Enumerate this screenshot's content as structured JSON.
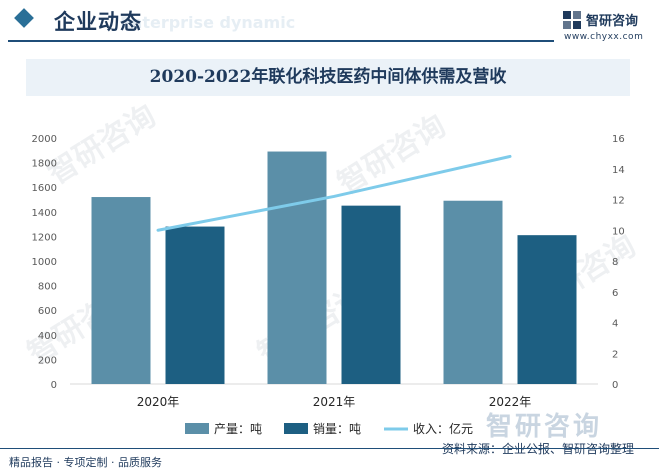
{
  "header": {
    "title": "企业动态",
    "subtitle": "Enterprise dynamic",
    "brand_name": "智研咨询",
    "brand_url": "www.chyxx.com"
  },
  "footer": {
    "services": "精品报告 · 专项定制 · 品质服务",
    "source": "资料来源：企业公报、智研咨询整理"
  },
  "watermark_text": "智研咨询",
  "colors": {
    "production": "#5b8fa8",
    "sales": "#1d5f82",
    "revenue": "#7ecbea",
    "title_band": "#ebf2f8",
    "brand_dark": "#1f3a5c"
  },
  "chart_data": {
    "type": "bar",
    "title": "2020-2022年联化科技医药中间体供需及营收",
    "categories": [
      "2020年",
      "2021年",
      "2022年"
    ],
    "series": [
      {
        "name": "产量：吨",
        "type": "bar",
        "axis": "left",
        "values": [
          1520,
          1890,
          1490
        ]
      },
      {
        "name": "销量：吨",
        "type": "bar",
        "axis": "left",
        "values": [
          1280,
          1450,
          1210
        ]
      },
      {
        "name": "收入：亿元",
        "type": "line",
        "axis": "right",
        "values": [
          10.0,
          12.2,
          14.8
        ]
      }
    ],
    "y_left": {
      "min": 0,
      "max": 2000,
      "ticks": [
        "0",
        "200",
        "400",
        "600",
        "800",
        "1000",
        "1200",
        "1400",
        "1600",
        "1800",
        "2000"
      ]
    },
    "y_right": {
      "min": 0,
      "max": 16,
      "ticks": [
        "0",
        "2",
        "4",
        "6",
        "8",
        "10",
        "12",
        "14",
        "16"
      ]
    },
    "legend_position": "bottom",
    "grid": false
  }
}
